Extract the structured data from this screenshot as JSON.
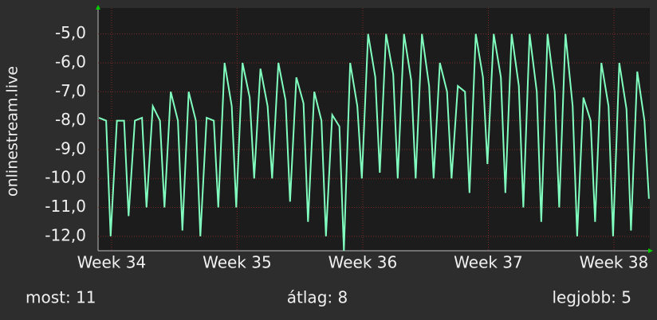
{
  "chart_data": {
    "type": "line",
    "y_label": "onlinestream.live",
    "x": [
      -0.7,
      -0.3,
      -0.05,
      0.3,
      0.7,
      0.95,
      1.3,
      1.7,
      1.95,
      2.3,
      2.7,
      2.95,
      3.3,
      3.7,
      3.95,
      4.3,
      4.7,
      4.95,
      5.3,
      5.7,
      5.95,
      6.3,
      6.7,
      6.95,
      7.3,
      7.7,
      7.95,
      8.3,
      8.7,
      8.95,
      9.3,
      9.7,
      9.95,
      10.3,
      10.7,
      10.95,
      11.3,
      11.7,
      11.95,
      12.3,
      12.7,
      12.95,
      13.3,
      13.7,
      13.95,
      14.3,
      14.7,
      14.95,
      15.3,
      15.7,
      15.95,
      16.3,
      16.7,
      16.95,
      17.3,
      17.7,
      17.95,
      18.3,
      18.7,
      18.95,
      19.3,
      19.7,
      19.95,
      20.3,
      20.7,
      20.95,
      21.3,
      21.7,
      21.95,
      22.3,
      22.7,
      22.95,
      23.3,
      23.7,
      23.95,
      24.3,
      24.7,
      24.95,
      25.3,
      25.7,
      25.95,
      26.3,
      26.7,
      26.95,
      27.3,
      27.7,
      27.95,
      28.3,
      28.7,
      28.95,
      29.3,
      29.7,
      29.95
    ],
    "values": [
      -7.9,
      -8.0,
      -12.0,
      -8.0,
      -8.0,
      -11.3,
      -8.0,
      -7.9,
      -11.0,
      -7.5,
      -8.0,
      -11.0,
      -7.0,
      -8.0,
      -11.8,
      -7.0,
      -8.0,
      -12.0,
      -7.9,
      -8.0,
      -11.0,
      -6.0,
      -7.5,
      -11.0,
      -6.0,
      -7.2,
      -10.0,
      -6.2,
      -7.5,
      -10.0,
      -6.0,
      -7.3,
      -10.8,
      -6.5,
      -7.4,
      -11.5,
      -7.0,
      -8.0,
      -12.0,
      -7.8,
      -8.2,
      -12.5,
      -6.0,
      -7.5,
      -10.0,
      -5.0,
      -6.5,
      -9.8,
      -5.0,
      -6.4,
      -10.0,
      -5.0,
      -6.6,
      -10.0,
      -5.0,
      -6.8,
      -10.0,
      -6.0,
      -7.0,
      -10.0,
      -6.8,
      -7.0,
      -10.5,
      -5.0,
      -6.5,
      -9.5,
      -5.0,
      -6.5,
      -10.5,
      -5.0,
      -6.8,
      -11.0,
      -5.0,
      -7.0,
      -11.5,
      -5.0,
      -7.0,
      -11.0,
      -5.0,
      -7.5,
      -12.0,
      -7.2,
      -8.0,
      -11.5,
      -6.0,
      -7.5,
      -12.0,
      -6.0,
      -7.6,
      -11.8,
      -6.3,
      -8.0,
      -10.7
    ],
    "color": "#80ffbf",
    "xlim": [
      -0.75,
      30.0
    ],
    "xticks": [
      {
        "value": 0,
        "label": "Week 34"
      },
      {
        "value": 7,
        "label": "Week 35"
      },
      {
        "value": 14,
        "label": "Week 36"
      },
      {
        "value": 21,
        "label": "Week 37"
      },
      {
        "value": 28,
        "label": "Week 38"
      }
    ],
    "ylim": [
      -12.5,
      -4.1
    ],
    "yticks": [
      {
        "value": -12,
        "label": "-12,0"
      },
      {
        "value": -11,
        "label": "-11,0"
      },
      {
        "value": -10,
        "label": "-10,0"
      },
      {
        "value": -9,
        "label": "-9,0"
      },
      {
        "value": -8,
        "label": "-8,0"
      },
      {
        "value": -7,
        "label": "-7,0"
      },
      {
        "value": -6,
        "label": "-6,0"
      },
      {
        "value": -5,
        "label": "-5,0"
      }
    ],
    "grid": true,
    "stats": [
      "most: 11",
      "átlag: 8",
      "legjobb: 5"
    ]
  }
}
